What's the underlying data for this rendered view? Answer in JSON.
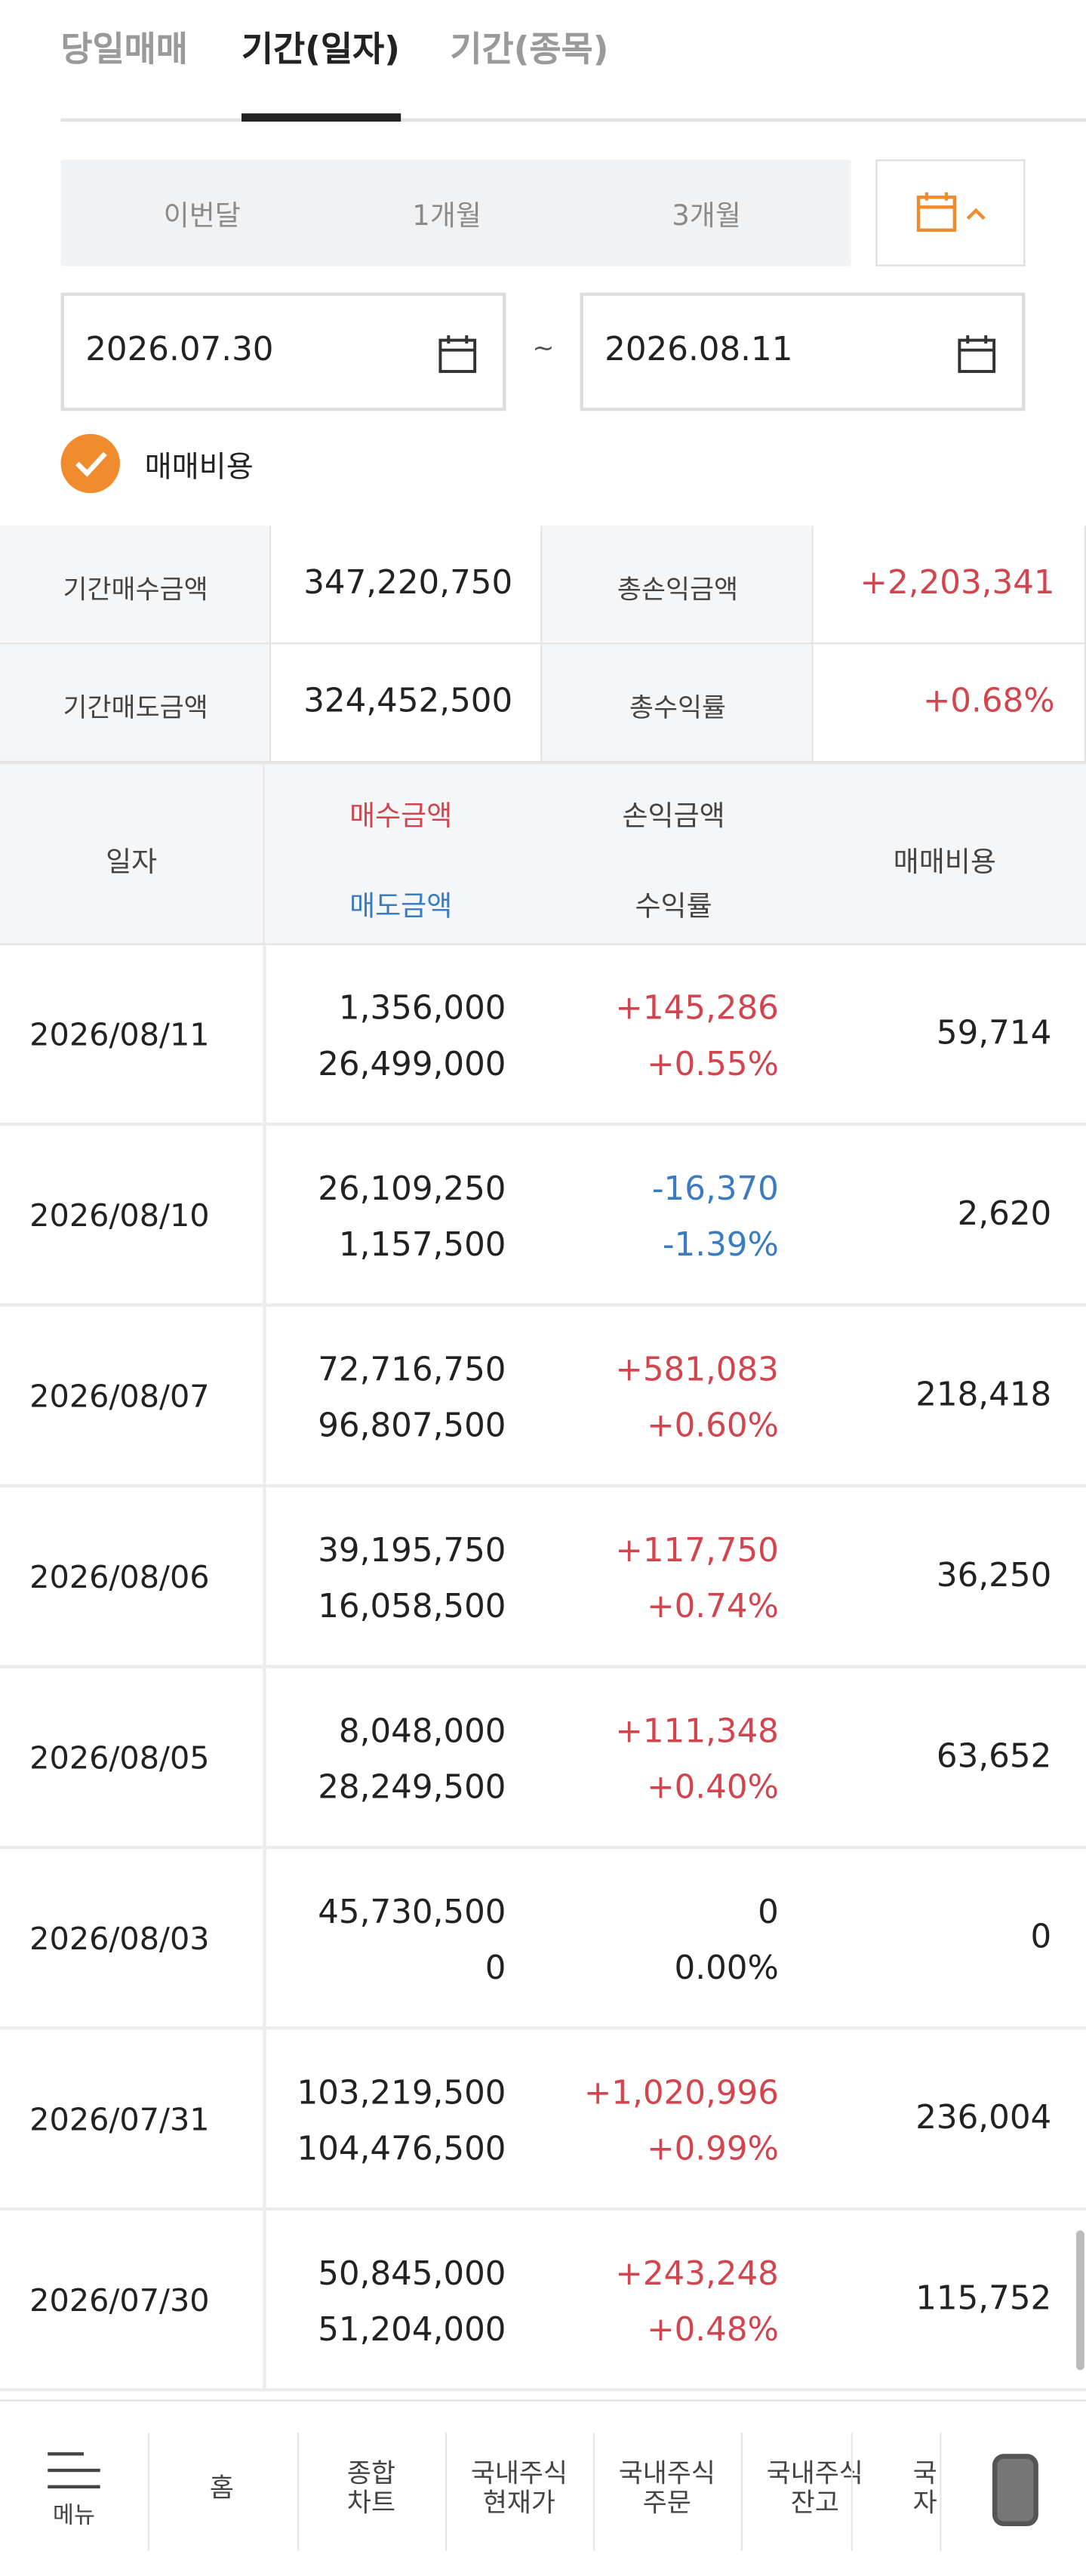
{
  "tabs": [
    "당일매매",
    "기간(일자)",
    "기간(종목)"
  ],
  "period_buttons": [
    "이번달",
    "1개월",
    "3개월"
  ],
  "date_range": {
    "start": "2026.07.30",
    "separator": "~",
    "end": "2026.08.11"
  },
  "checkbox_label": "매매비용",
  "summary": [
    {
      "label": "기간매수금액",
      "value": "347,220,750"
    },
    {
      "label": "총손익금액",
      "value": "+2,203,341"
    },
    {
      "label": "기간매도금액",
      "value": "324,452,500"
    },
    {
      "label": "총수익률",
      "value": "+0.68%"
    }
  ],
  "table": {
    "headers": {
      "date": "일자",
      "buy": "매수금액",
      "sell": "매도금액",
      "pl": "손익금액",
      "rate": "수익률",
      "fee": "매매비용"
    },
    "rows": [
      [
        "2026/08/11",
        "1,356,000",
        "26,499,000",
        "+145,286",
        "+0.55%",
        "59,714"
      ],
      [
        "2026/08/10",
        "26,109,250",
        "1,157,500",
        "-16,370",
        "-1.39%",
        "2,620"
      ],
      [
        "2026/08/07",
        "72,716,750",
        "96,807,500",
        "+581,083",
        "+0.60%",
        "218,418"
      ],
      [
        "2026/08/06",
        "39,195,750",
        "16,058,500",
        "+117,750",
        "+0.74%",
        "36,250"
      ],
      [
        "2026/08/05",
        "8,048,000",
        "28,249,500",
        "+111,348",
        "+0.40%",
        "63,652"
      ],
      [
        "2026/08/03",
        "45,730,500",
        "0",
        "0",
        "0.00%",
        "0"
      ],
      [
        "2026/07/31",
        "103,219,500",
        "104,476,500",
        "+1,020,996",
        "+0.99%",
        "236,004"
      ],
      [
        "2026/07/30",
        "50,845,000",
        "51,204,000",
        "+243,248",
        "+0.48%",
        "115,752"
      ]
    ]
  },
  "bottom_nav": [
    [
      "메뉴"
    ],
    [
      "홈"
    ],
    [
      "종합",
      "차트"
    ],
    [
      "국내주식",
      "현재가"
    ],
    [
      "국내주식",
      "주문"
    ],
    [
      "국내주식",
      "잔고"
    ],
    [
      "국",
      "자"
    ]
  ]
}
